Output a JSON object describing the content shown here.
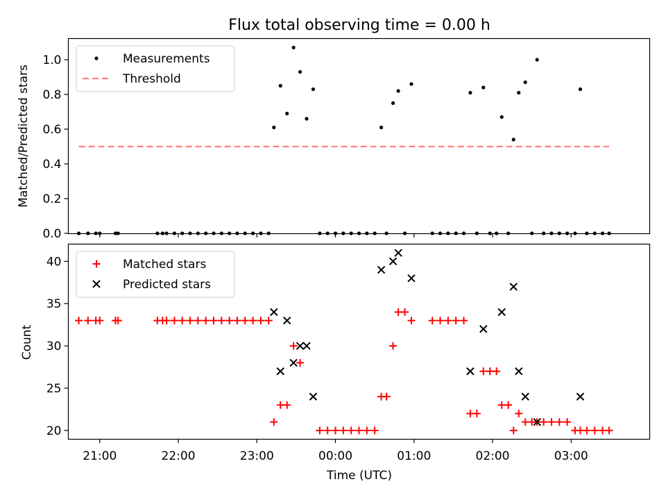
{
  "figure_title": "Flux total observing time = 0.00 h",
  "chart_data": [
    {
      "type": "scatter",
      "title": "Flux total observing time = 0.00 h",
      "xlabel": "",
      "ylabel": "Matched/Predicted stars",
      "ylim": [
        0.0,
        1.12
      ],
      "xlim": [
        "20:36",
        "04:00"
      ],
      "yticks": [
        0.0,
        0.2,
        0.4,
        0.6,
        0.8,
        1.0
      ],
      "ytick_labels": [
        "0.0",
        "0.2",
        "0.4",
        "0.6",
        "0.8",
        "1.0"
      ],
      "grid": false,
      "legend": {
        "location": "top-left",
        "entries": [
          "Measurements",
          "Threshold"
        ]
      },
      "series": [
        {
          "name": "Measurements",
          "marker": "dot",
          "color": "#000000",
          "points": [
            [
              "20:44",
              0
            ],
            [
              "20:51",
              0
            ],
            [
              "20:57",
              0
            ],
            [
              "21:00",
              0
            ],
            [
              "21:12",
              0
            ],
            [
              "21:14",
              0
            ],
            [
              "21:44",
              0
            ],
            [
              "21:48",
              0
            ],
            [
              "21:51",
              0
            ],
            [
              "21:57",
              0
            ],
            [
              "22:03",
              0
            ],
            [
              "22:09",
              0
            ],
            [
              "22:15",
              0
            ],
            [
              "22:21",
              0
            ],
            [
              "22:27",
              0
            ],
            [
              "22:33",
              0
            ],
            [
              "22:39",
              0
            ],
            [
              "22:45",
              0
            ],
            [
              "22:51",
              0
            ],
            [
              "22:57",
              0
            ],
            [
              "23:03",
              0
            ],
            [
              "23:09",
              0
            ],
            [
              "23:13",
              0.61
            ],
            [
              "23:18",
              0.85
            ],
            [
              "23:23",
              0.69
            ],
            [
              "23:28",
              1.07
            ],
            [
              "23:33",
              0.93
            ],
            [
              "23:38",
              0.66
            ],
            [
              "23:43",
              0.83
            ],
            [
              "23:48",
              0
            ],
            [
              "23:54",
              0
            ],
            [
              "00:00",
              0
            ],
            [
              "00:06",
              0
            ],
            [
              "00:12",
              0
            ],
            [
              "00:18",
              0
            ],
            [
              "00:24",
              0
            ],
            [
              "00:30",
              0
            ],
            [
              "00:35",
              0.61
            ],
            [
              "00:39",
              0
            ],
            [
              "00:44",
              0.75
            ],
            [
              "00:48",
              0.82
            ],
            [
              "00:53",
              0
            ],
            [
              "00:58",
              0.86
            ],
            [
              "01:14",
              0
            ],
            [
              "01:20",
              0
            ],
            [
              "01:26",
              0
            ],
            [
              "01:32",
              0
            ],
            [
              "01:38",
              0
            ],
            [
              "01:43",
              0.81
            ],
            [
              "01:48",
              0
            ],
            [
              "01:53",
              0.84
            ],
            [
              "01:58",
              0
            ],
            [
              "02:03",
              0
            ],
            [
              "02:07",
              0.67
            ],
            [
              "02:12",
              0
            ],
            [
              "02:16",
              0.54
            ],
            [
              "02:20",
              0.81
            ],
            [
              "02:25",
              0.87
            ],
            [
              "02:30",
              0
            ],
            [
              "02:34",
              1.0
            ],
            [
              "02:39",
              0
            ],
            [
              "02:45",
              0
            ],
            [
              "02:51",
              0
            ],
            [
              "02:57",
              0
            ],
            [
              "03:03",
              0
            ],
            [
              "03:07",
              0.83
            ],
            [
              "03:12",
              0
            ],
            [
              "03:18",
              0
            ],
            [
              "03:24",
              0
            ],
            [
              "03:29",
              0
            ]
          ]
        },
        {
          "name": "Threshold",
          "style": "dashed",
          "color": "#ff7f7f",
          "points": [
            [
              "20:44",
              0.5
            ],
            [
              "03:29",
              0.5
            ]
          ]
        }
      ]
    },
    {
      "type": "scatter",
      "title": "",
      "xlabel": "Time (UTC)",
      "ylabel": "Count",
      "ylim": [
        19,
        42
      ],
      "xlim": [
        "20:36",
        "04:00"
      ],
      "yticks": [
        20,
        25,
        30,
        35,
        40
      ],
      "ytick_labels": [
        "20",
        "25",
        "30",
        "35",
        "40"
      ],
      "xtick_labels": [
        "21:00",
        "22:00",
        "23:00",
        "00:00",
        "01:00",
        "02:00",
        "03:00"
      ],
      "grid": false,
      "legend": {
        "location": "top-left",
        "entries": [
          "Matched stars",
          "Predicted stars"
        ]
      },
      "series": [
        {
          "name": "Matched stars",
          "marker": "plus",
          "color": "#ff0000",
          "points": [
            [
              "20:44",
              33
            ],
            [
              "20:51",
              33
            ],
            [
              "20:57",
              33
            ],
            [
              "21:00",
              33
            ],
            [
              "21:12",
              33
            ],
            [
              "21:14",
              33
            ],
            [
              "21:44",
              33
            ],
            [
              "21:48",
              33
            ],
            [
              "21:51",
              33
            ],
            [
              "21:57",
              33
            ],
            [
              "22:03",
              33
            ],
            [
              "22:09",
              33
            ],
            [
              "22:15",
              33
            ],
            [
              "22:21",
              33
            ],
            [
              "22:27",
              33
            ],
            [
              "22:33",
              33
            ],
            [
              "22:39",
              33
            ],
            [
              "22:45",
              33
            ],
            [
              "22:51",
              33
            ],
            [
              "22:57",
              33
            ],
            [
              "23:03",
              33
            ],
            [
              "23:09",
              33
            ],
            [
              "23:13",
              21
            ],
            [
              "23:18",
              23
            ],
            [
              "23:23",
              23
            ],
            [
              "23:28",
              30
            ],
            [
              "23:33",
              28
            ],
            [
              "23:48",
              20
            ],
            [
              "23:54",
              20
            ],
            [
              "00:00",
              20
            ],
            [
              "00:06",
              20
            ],
            [
              "00:12",
              20
            ],
            [
              "00:18",
              20
            ],
            [
              "00:24",
              20
            ],
            [
              "00:30",
              20
            ],
            [
              "00:35",
              24
            ],
            [
              "00:39",
              24
            ],
            [
              "00:44",
              30
            ],
            [
              "00:48",
              34
            ],
            [
              "00:53",
              34
            ],
            [
              "00:58",
              33
            ],
            [
              "01:14",
              33
            ],
            [
              "01:20",
              33
            ],
            [
              "01:26",
              33
            ],
            [
              "01:32",
              33
            ],
            [
              "01:38",
              33
            ],
            [
              "01:43",
              22
            ],
            [
              "01:48",
              22
            ],
            [
              "01:53",
              27
            ],
            [
              "01:58",
              27
            ],
            [
              "02:03",
              27
            ],
            [
              "02:07",
              23
            ],
            [
              "02:12",
              23
            ],
            [
              "02:16",
              20
            ],
            [
              "02:20",
              22
            ],
            [
              "02:25",
              21
            ],
            [
              "02:30",
              21
            ],
            [
              "02:34",
              21
            ],
            [
              "02:39",
              21
            ],
            [
              "02:45",
              21
            ],
            [
              "02:51",
              21
            ],
            [
              "02:57",
              21
            ],
            [
              "03:03",
              20
            ],
            [
              "03:07",
              20
            ],
            [
              "03:12",
              20
            ],
            [
              "03:18",
              20
            ],
            [
              "03:24",
              20
            ],
            [
              "03:29",
              20
            ]
          ]
        },
        {
          "name": "Predicted stars",
          "marker": "x",
          "color": "#000000",
          "points": [
            [
              "23:13",
              34
            ],
            [
              "23:18",
              27
            ],
            [
              "23:23",
              33
            ],
            [
              "23:28",
              28
            ],
            [
              "23:33",
              30
            ],
            [
              "23:38",
              30
            ],
            [
              "23:43",
              24
            ],
            [
              "00:35",
              39
            ],
            [
              "00:44",
              40
            ],
            [
              "00:48",
              41
            ],
            [
              "00:58",
              38
            ],
            [
              "01:43",
              27
            ],
            [
              "01:53",
              32
            ],
            [
              "02:07",
              34
            ],
            [
              "02:16",
              37
            ],
            [
              "02:20",
              27
            ],
            [
              "02:25",
              24
            ],
            [
              "02:34",
              21
            ],
            [
              "03:07",
              24
            ]
          ]
        }
      ]
    }
  ]
}
